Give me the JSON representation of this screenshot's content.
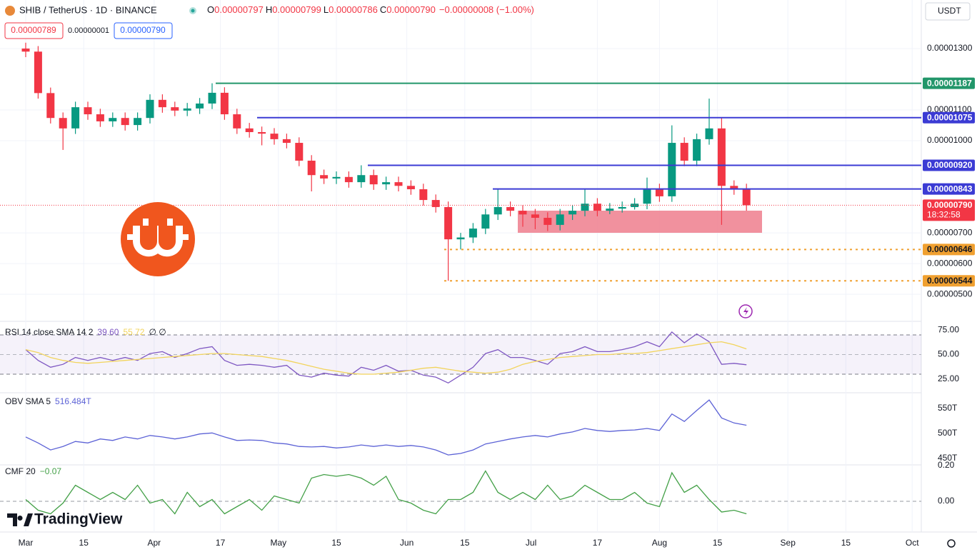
{
  "chart_data": [
    {
      "type": "candlestick",
      "symbol": "SHIB / TetherUS · 1D · BINANCE",
      "ohlc": [
        {
          "name": "O",
          "value": 7.97e-06
        },
        {
          "name": "H",
          "value": 7.99e-06
        },
        {
          "name": "L",
          "value": 7.86e-06
        },
        {
          "name": "C",
          "value": 7.9e-06,
          "value_label": "0.00000790"
        }
      ],
      "change": "−0.00000008 (−1.00%)",
      "quote": [
        "0.00000789",
        "0.00000001",
        "0.00000790"
      ],
      "currency": "USDT",
      "brand": "TradingView",
      "up_color": "#089981",
      "down_color": "#f23645",
      "x": [
        "Mar 1",
        "Mar 4",
        "Mar 7",
        "Mar 10",
        "Mar 13",
        "Mar 16",
        "Mar 19",
        "Mar 22",
        "Mar 25",
        "Mar 28",
        "Mar 31",
        "Apr 3",
        "Apr 6",
        "Apr 9",
        "Apr 12",
        "Apr 15",
        "Apr 18",
        "Apr 21",
        "Apr 24",
        "Apr 27",
        "Apr 30",
        "May 3",
        "May 6",
        "May 9",
        "May 12",
        "May 15",
        "May 18",
        "May 21",
        "May 24",
        "May 27",
        "May 30",
        "Jun 2",
        "Jun 5",
        "Jun 8",
        "Jun 11",
        "Jun 14",
        "Jun 17",
        "Jun 20",
        "Jun 23",
        "Jun 26",
        "Jun 29",
        "Jul 2",
        "Jul 5",
        "Jul 8",
        "Jul 11",
        "Jul 14",
        "Jul 17",
        "Jul 20",
        "Jul 23",
        "Jul 26",
        "Jul 29",
        "Aug 1",
        "Aug 4",
        "Aug 7",
        "Aug 10",
        "Aug 13",
        "Aug 16",
        "Aug 19",
        "Aug 22"
      ],
      "open": [
        1.3e-05,
        1.29e-05,
        1.155e-05,
        1.074e-05,
        1.04e-05,
        1.109e-05,
        1.086e-05,
        1.063e-05,
        1.074e-05,
        1.051e-05,
        1.074e-05,
        1.133e-05,
        1.109e-05,
        1.098e-05,
        1.105e-05,
        1.121e-05,
        1.156e-05,
        1.086e-05,
        1.04e-05,
        1.028e-05,
        1.023e-05,
        1.005e-05,
        9.93e-06,
        9.35e-06,
        8.88e-06,
        8.77e-06,
        8.82e-06,
        8.65e-06,
        8.88e-06,
        8.58e-06,
        8.65e-06,
        8.53e-06,
        8.42e-06,
        8.07e-06,
        7.84e-06,
        6.79e-06,
        6.85e-06,
        7.14e-06,
        7.6e-06,
        7.84e-06,
        7.72e-06,
        7.6e-06,
        7.49e-06,
        7.26e-06,
        7.6e-06,
        7.72e-06,
        7.95e-06,
        7.72e-06,
        7.79e-06,
        7.84e-06,
        7.95e-06,
        8.42e-06,
        8.19e-06,
        9.93e-06,
        9.35e-06,
        1.005e-05,
        1.04e-05,
        8.53e-06,
        8.42e-06
      ],
      "high": [
        1.319e-05,
        1.308e-05,
        1.173e-05,
        1.092e-05,
        1.127e-05,
        1.127e-05,
        1.104e-05,
        1.092e-05,
        1.092e-05,
        1.092e-05,
        1.151e-05,
        1.151e-05,
        1.127e-05,
        1.123e-05,
        1.139e-05,
        1.187e-05,
        1.174e-05,
        1.104e-05,
        1.058e-05,
        1.046e-05,
        1.041e-05,
        1.023e-05,
        1.011e-05,
        9.53e-06,
        9.06e-06,
        9e-06,
        9e-06,
        9.2e-06,
        9.06e-06,
        8.83e-06,
        8.83e-06,
        8.71e-06,
        8.6e-06,
        8.25e-06,
        8.02e-06,
        7e-06,
        7.32e-06,
        7.78e-06,
        8.43e-06,
        8.02e-06,
        7.9e-06,
        7.78e-06,
        7.67e-06,
        7.78e-06,
        7.9e-06,
        8.43e-06,
        8.13e-06,
        7.97e-06,
        8.02e-06,
        8.13e-06,
        8.8e-06,
        8.6e-06,
        1.05e-05,
        1.011e-05,
        1.023e-05,
        1.137e-05,
        1.075e-05,
        8.71e-06,
        8.6e-06
      ],
      "low": [
        1.272e-05,
        1.137e-05,
        1.056e-05,
        9.7e-06,
        1.022e-05,
        1.068e-05,
        1.045e-05,
        1.045e-05,
        1.033e-05,
        1.033e-05,
        1.056e-05,
        1.091e-05,
        1.08e-05,
        1.08e-05,
        1.087e-05,
        1.103e-05,
        1.068e-05,
        1.022e-05,
        1.01e-05,
        9.85e-06,
        9.87e-06,
        9.75e-06,
        9.17e-06,
        8.35e-06,
        8.59e-06,
        8.59e-06,
        8.47e-06,
        8.47e-06,
        8.4e-06,
        8.4e-06,
        8.35e-06,
        8.24e-06,
        7.89e-06,
        7.66e-06,
        5.44e-06,
        6.46e-06,
        6.67e-06,
        6.96e-06,
        7.42e-06,
        7.54e-06,
        7.2e-06,
        7.12e-06,
        7.06e-06,
        7.08e-06,
        7.42e-06,
        7.54e-06,
        7.54e-06,
        7.61e-06,
        7.66e-06,
        7.76e-06,
        7.77e-06,
        8.01e-06,
        8.01e-06,
        9.17e-06,
        9.17e-06,
        9.87e-06,
        7.26e-06,
        8.24e-06,
        7.72e-06
      ],
      "close": [
        1.29e-05,
        1.155e-05,
        1.074e-05,
        1.04e-05,
        1.109e-05,
        1.086e-05,
        1.063e-05,
        1.074e-05,
        1.051e-05,
        1.074e-05,
        1.133e-05,
        1.109e-05,
        1.098e-05,
        1.105e-05,
        1.121e-05,
        1.156e-05,
        1.086e-05,
        1.04e-05,
        1.028e-05,
        1.023e-05,
        1.005e-05,
        9.93e-06,
        9.35e-06,
        8.88e-06,
        8.77e-06,
        8.82e-06,
        8.65e-06,
        8.88e-06,
        8.58e-06,
        8.65e-06,
        8.53e-06,
        8.42e-06,
        8.07e-06,
        7.84e-06,
        6.79e-06,
        6.85e-06,
        7.14e-06,
        7.6e-06,
        7.84e-06,
        7.72e-06,
        7.6e-06,
        7.49e-06,
        7.26e-06,
        7.6e-06,
        7.72e-06,
        7.95e-06,
        7.72e-06,
        7.79e-06,
        7.84e-06,
        7.95e-06,
        8.42e-06,
        8.19e-06,
        9.93e-06,
        9.35e-06,
        1.005e-05,
        1.04e-05,
        8.53e-06,
        8.42e-06,
        7.9e-06
      ],
      "ylim": [
        4.12e-06,
        1.458e-05
      ],
      "yticks": [
        {
          "value": 1.3e-05,
          "label": "0.00001300"
        },
        {
          "value": 1.1e-05,
          "label": "0.00001100"
        },
        {
          "value": 1e-05,
          "label": "0.00001000"
        },
        {
          "value": 7e-06,
          "label": "0.00000700"
        },
        {
          "value": 6e-06,
          "label": "0.00000600"
        },
        {
          "value": 5e-06,
          "label": "0.00000500"
        }
      ],
      "xticks": [
        {
          "value": "Mar 1",
          "label": "Mar"
        },
        {
          "value": "Mar 15",
          "label": "15"
        },
        {
          "value": "Apr 1",
          "label": "Apr"
        },
        {
          "value": "Apr 17",
          "label": "17"
        },
        {
          "value": "May 1",
          "label": "May"
        },
        {
          "value": "May 15",
          "label": "15"
        },
        {
          "value": "Jun 1",
          "label": "Jun"
        },
        {
          "value": "Jun 15",
          "label": "15"
        },
        {
          "value": "Jul 1",
          "label": "Jul"
        },
        {
          "value": "Jul 17",
          "label": "17"
        },
        {
          "value": "Aug 1",
          "label": "Aug"
        },
        {
          "value": "Aug 15",
          "label": "15"
        },
        {
          "value": "Sep 1",
          "label": "Sep"
        },
        {
          "value": "Sep 15",
          "label": "15"
        },
        {
          "value": "Oct 1",
          "label": "Oct"
        }
      ],
      "levels": [
        {
          "value": 1.187e-05,
          "color": "#22966a"
        },
        {
          "value": 1.075e-05,
          "color": "#3b3bd4"
        },
        {
          "value": 9.2e-06,
          "label": "0.00000920",
          "color": "#3b3bd4"
        },
        {
          "value": 8.43e-06,
          "color": "#3b3bd4"
        },
        {
          "value": 6.46e-06,
          "color": "#f0a030",
          "dashed": true
        },
        {
          "value": 5.44e-06,
          "color": "#f0a030",
          "dashed": true
        }
      ],
      "last": {
        "value": 7.9e-06,
        "label": "0.00000790",
        "countdown": "18:32:58",
        "color": "#f23645"
      },
      "grid": true
    },
    {
      "type": "line",
      "title": "RSI 14 close SMA 14 2",
      "extra": "∅ ∅",
      "series": [
        {
          "color": "#7e57c2",
          "last_label": "39.60",
          "values": [
            55,
            44,
            37,
            40,
            47,
            44,
            47,
            44,
            47,
            44,
            51,
            53,
            47,
            51,
            56,
            58,
            44,
            39,
            40,
            39,
            37,
            39,
            29,
            27,
            31,
            29,
            28,
            37,
            34,
            39,
            33,
            34,
            29,
            27,
            21,
            29,
            37,
            51,
            55,
            47,
            47,
            44,
            40,
            51,
            53,
            58,
            53,
            53,
            55,
            58,
            63,
            58,
            73,
            62,
            71,
            63,
            40,
            41,
            39.6
          ]
        },
        {
          "color": "#f2d45c",
          "last_label": "55.72",
          "values": [
            55,
            52,
            47,
            44,
            42,
            41,
            42,
            43,
            44,
            45,
            46,
            47,
            48,
            49,
            50,
            51,
            51,
            50,
            49,
            48,
            46,
            44,
            41,
            38,
            35,
            33,
            31,
            30,
            30,
            31,
            32,
            34,
            36,
            37,
            35,
            33,
            32,
            31,
            32,
            35,
            40,
            43,
            45,
            47,
            48,
            49,
            50,
            50,
            51,
            51,
            52,
            54,
            56,
            58,
            60,
            62,
            63,
            60,
            55.72
          ]
        }
      ],
      "band": [
        30,
        70
      ],
      "ylim": [
        12.5,
        80.2
      ],
      "yticks": [
        {
          "value": 75,
          "label": "75.00"
        },
        {
          "value": 50,
          "label": "50.00"
        },
        {
          "value": 25,
          "label": "25.00"
        }
      ]
    },
    {
      "type": "line",
      "title": "OBV SMA 5",
      "series": [
        {
          "color": "#5c62d6",
          "last_label": "516.484T",
          "values": [
            493,
            481,
            467,
            474,
            484,
            481,
            489,
            486,
            493,
            489,
            496,
            493,
            489,
            493,
            499,
            501,
            493,
            486,
            487,
            486,
            481,
            479,
            474,
            473,
            474,
            471,
            473,
            477,
            474,
            477,
            474,
            476,
            473,
            467,
            457,
            460,
            467,
            479,
            484,
            489,
            493,
            496,
            493,
            499,
            503,
            510,
            506,
            504,
            506,
            507,
            510,
            506,
            539,
            524,
            546,
            567,
            531,
            521,
            516.484
          ]
        }
      ],
      "ylim": [
        438.6,
        578.6
      ],
      "yticks": [
        {
          "value": 550,
          "label": "550T"
        },
        {
          "value": 500,
          "label": "500T"
        },
        {
          "value": 450,
          "label": "450T"
        }
      ]
    },
    {
      "type": "line",
      "title": "CMF 20",
      "series": [
        {
          "color": "#43a047",
          "last_label": "−0.07",
          "values": [
            0.01,
            -0.05,
            -0.07,
            -0.01,
            0.09,
            0.05,
            0.01,
            0.05,
            0.01,
            0.09,
            -0.01,
            0.01,
            -0.07,
            0.05,
            -0.03,
            0.01,
            -0.07,
            -0.03,
            0.01,
            -0.05,
            0.03,
            0.01,
            -0.01,
            0.13,
            0.15,
            0.14,
            0.15,
            0.13,
            0.09,
            0.14,
            0.01,
            -0.01,
            -0.05,
            -0.07,
            0.01,
            0.01,
            0.05,
            0.17,
            0.05,
            0.01,
            0.05,
            0.01,
            0.09,
            0.01,
            0.03,
            0.09,
            0.05,
            0.01,
            0.01,
            0.05,
            -0.01,
            -0.03,
            0.16,
            0.05,
            0.09,
            0.01,
            -0.06,
            -0.05,
            -0.07
          ]
        }
      ],
      "ylim": [
        -0.172,
        0.208
      ],
      "yticks": [
        {
          "value": 0.2,
          "label": "0.20"
        },
        {
          "value": 0,
          "label": "0.00"
        }
      ],
      "zero_dashed": true
    }
  ]
}
